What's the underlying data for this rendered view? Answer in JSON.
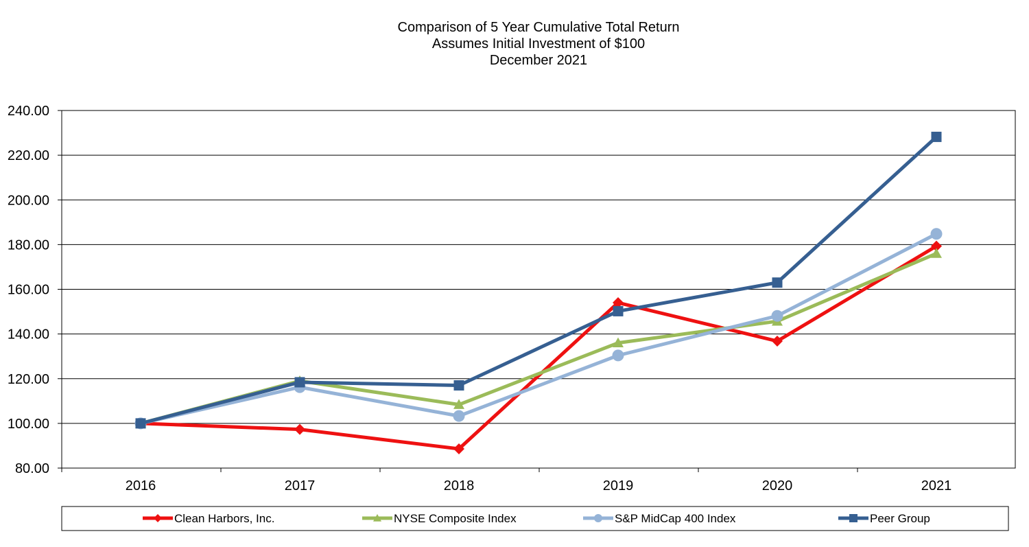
{
  "chart_data": {
    "type": "line",
    "title": "Comparison of 5 Year Cumulative Total Return",
    "subtitle": "Assumes Initial Investment of $100",
    "subtitle2": "December 2021",
    "categories": [
      "2016",
      "2017",
      "2018",
      "2019",
      "2020",
      "2021"
    ],
    "ylim": [
      80,
      240
    ],
    "y_ticks": [
      "80.00",
      "100.00",
      "120.00",
      "140.00",
      "160.00",
      "180.00",
      "200.00",
      "220.00",
      "240.00"
    ],
    "grid": true,
    "legend_position": "bottom",
    "series": [
      {
        "name": "Clean Harbors, Inc.",
        "color": "#ee1111",
        "marker": "diamond",
        "values": [
          100.0,
          97.3,
          88.6,
          154.0,
          136.8,
          179.3
        ]
      },
      {
        "name": "NYSE Composite Index",
        "color": "#9bbb59",
        "marker": "triangle",
        "values": [
          100.0,
          119.0,
          108.4,
          136.0,
          145.7,
          176.0
        ]
      },
      {
        "name": "S&P MidCap 400 Index",
        "color": "#95b3d7",
        "marker": "circle",
        "values": [
          100.0,
          116.2,
          103.3,
          130.4,
          148.1,
          184.8
        ]
      },
      {
        "name": "Peer Group",
        "color": "#365f91",
        "marker": "square",
        "values": [
          100.0,
          118.4,
          117.0,
          150.2,
          163.0,
          228.2
        ]
      }
    ]
  }
}
